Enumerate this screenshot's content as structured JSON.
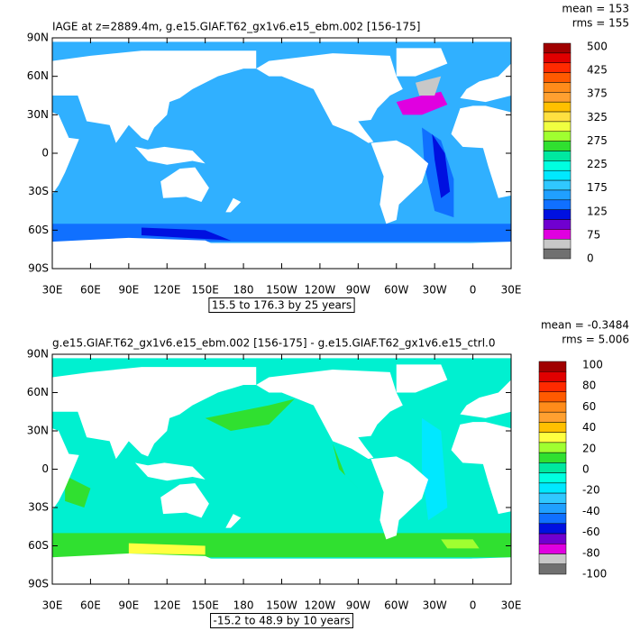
{
  "panels": [
    {
      "title": "IAGE at z=2889.4m, g.e15.GIAF.T62_gx1v6.e15_ebm.002 [156-175]",
      "mean": "mean = 153",
      "rms": "rms = 155",
      "x_ticks": [
        "30E",
        "60E",
        "90E",
        "120E",
        "150E",
        "180",
        "150W",
        "120W",
        "90W",
        "60W",
        "30W",
        "0",
        "30E"
      ],
      "y_ticks": [
        "90N",
        "60N",
        "30N",
        "0",
        "30S",
        "60S",
        "90S"
      ],
      "colorbar": {
        "labels": [
          "500",
          "425",
          "375",
          "325",
          "275",
          "225",
          "175",
          "125",
          "75",
          "0"
        ],
        "colors": [
          "#a00000",
          "#e00000",
          "#ff2a00",
          "#ff5a00",
          "#ff8c1a",
          "#ffa030",
          "#ffc000",
          "#ffe040",
          "#f0ff40",
          "#a0ff30",
          "#30e030",
          "#00e8a0",
          "#00ffe0",
          "#00e8ff",
          "#30c8ff",
          "#20a0ff",
          "#1070ff",
          "#0010e0",
          "#7000d0",
          "#e000e0",
          "#c8c8c8",
          "#707070"
        ]
      },
      "info": "15.5 to 176.3 by 25 years"
    },
    {
      "title": "g.e15.GIAF.T62_gx1v6.e15_ebm.002 [156-175] - g.e15.GIAF.T62_gx1v6.e15_ctrl.0",
      "mean": "mean = -0.3484",
      "rms": "rms = 5.006",
      "x_ticks": [
        "30E",
        "60E",
        "90E",
        "120E",
        "150E",
        "180",
        "150W",
        "120W",
        "90W",
        "60W",
        "30W",
        "0",
        "30E"
      ],
      "y_ticks": [
        "90N",
        "60N",
        "30N",
        "0",
        "30S",
        "60S",
        "90S"
      ],
      "colorbar": {
        "labels": [
          "100",
          "80",
          "60",
          "40",
          "20",
          "0",
          "-20",
          "-40",
          "-60",
          "-80",
          "-100"
        ],
        "colors": [
          "#a00000",
          "#e00000",
          "#ff2a00",
          "#ff5a00",
          "#ff8c1a",
          "#ffa030",
          "#ffc000",
          "#ffff40",
          "#a0ff30",
          "#30e030",
          "#00e8a0",
          "#00ffe0",
          "#00e8ff",
          "#30c8ff",
          "#20a0ff",
          "#1070ff",
          "#0010e0",
          "#7000d0",
          "#e000e0",
          "#c8c8c8",
          "#707070"
        ]
      },
      "info": "-15.2 to 48.9 by 10 years"
    }
  ]
}
